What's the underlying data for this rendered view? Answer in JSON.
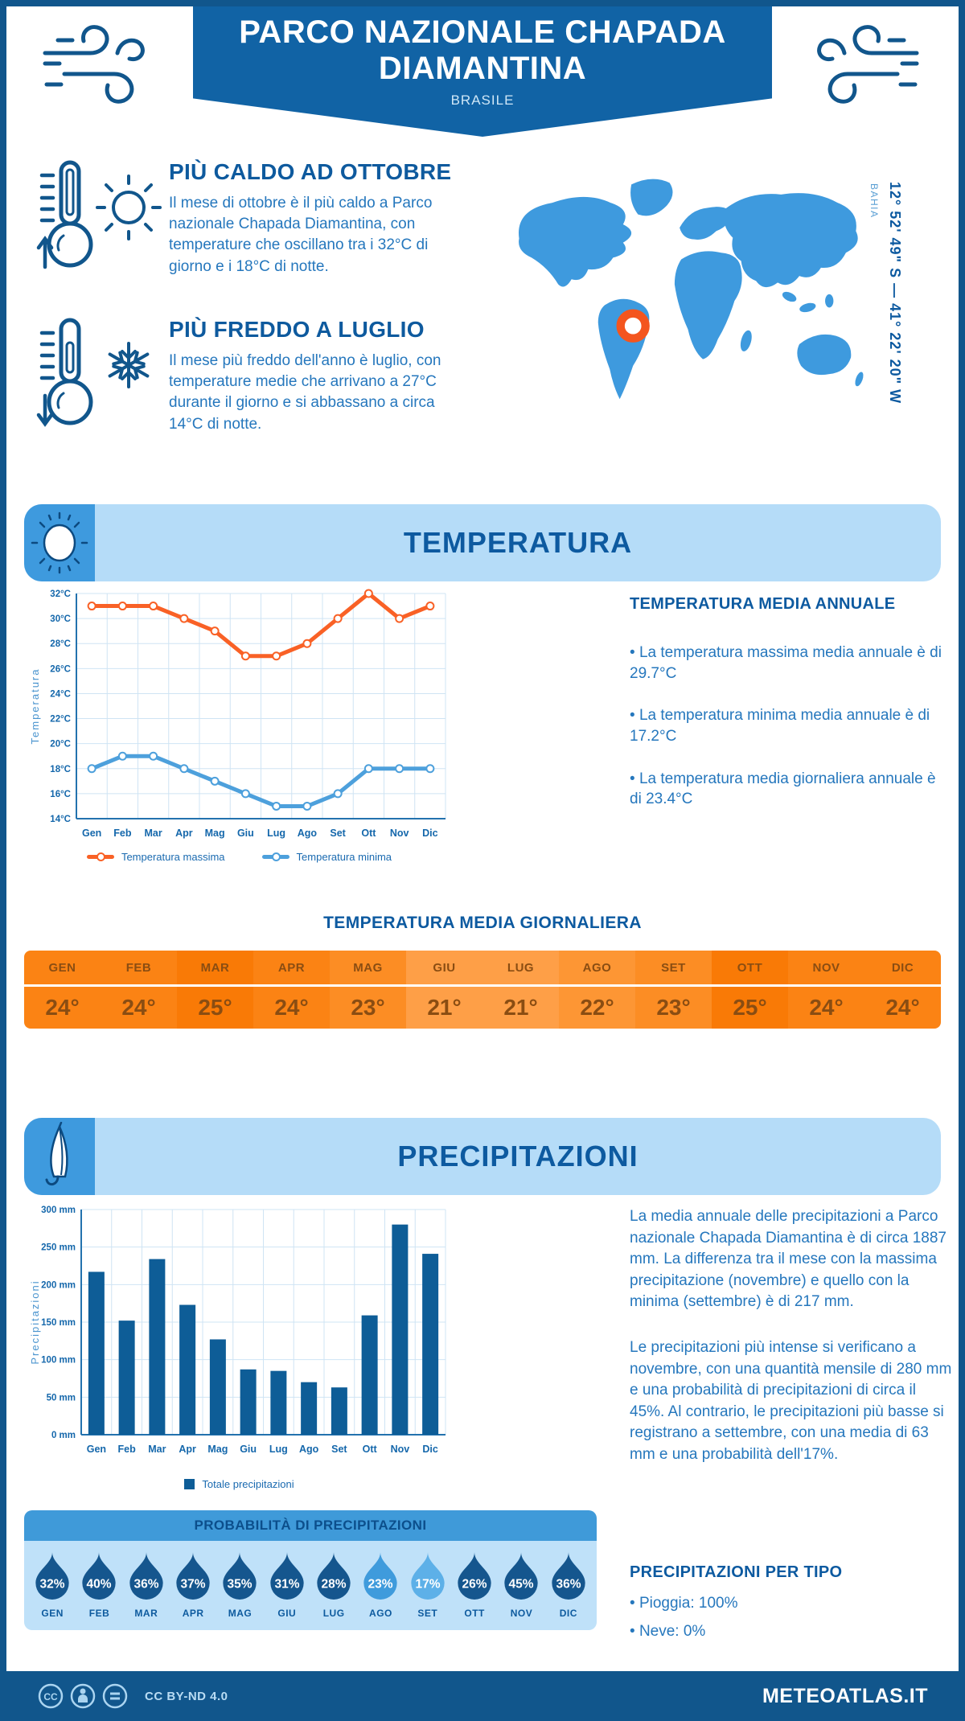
{
  "header": {
    "title": "PARCO NAZIONALE CHAPADA DIAMANTINA",
    "subtitle": "BRASILE"
  },
  "highlights": [
    {
      "title": "PIÙ CALDO AD OTTOBRE",
      "text": "Il mese di ottobre è il più caldo a Parco nazionale Chapada Diamantina, con temperature che oscillano tra i 32°C di giorno e i 18°C di notte."
    },
    {
      "title": "PIÙ FREDDO A LUGLIO",
      "text": "Il mese più freddo dell'anno è luglio, con temperature medie che arrivano a 27°C durante il giorno e si abbassano a circa 14°C di notte."
    }
  ],
  "map": {
    "region_label": "BAHIA",
    "coordinates_label": "12° 52' 49\" S — 41° 22' 20\" W",
    "land_color": "#3e9ade",
    "marker_color": "#f4551e"
  },
  "temperature": {
    "banner_title": "TEMPERATURA",
    "annual": {
      "title": "TEMPERATURA MEDIA ANNUALE",
      "bullets": [
        "La temperatura massima media annuale è di 29.7°C",
        "La temperatura minima media annuale è di 17.2°C",
        "La temperatura media giornaliera annuale è di 23.4°C"
      ]
    },
    "daily": {
      "title": "TEMPERATURA MEDIA GIORNALIERA",
      "months": [
        "GEN",
        "FEB",
        "MAR",
        "APR",
        "MAG",
        "GIU",
        "LUG",
        "AGO",
        "SET",
        "OTT",
        "NOV",
        "DIC"
      ],
      "values": [
        24,
        24,
        25,
        24,
        23,
        21,
        21,
        22,
        23,
        25,
        24,
        24
      ],
      "colors": {
        "21": "#fe9f47",
        "22": "#fd9634",
        "23": "#fc8d24",
        "24": "#fb8314",
        "25": "#f97a06"
      },
      "text_color": "#8a4d12"
    }
  },
  "precipitation": {
    "banner_title": "PRECIPITAZIONI",
    "paragraphs": [
      "La media annuale delle precipitazioni a Parco nazionale Chapada Diamantina è di circa 1887 mm. La differenza tra il mese con la massima precipitazione (novembre) e quello con la minima (settembre) è di 217 mm.",
      "Le precipitazioni più intense si verificano a novembre, con una quantità mensile di 280 mm e una probabilità di precipitazioni di circa il 45%. Al contrario, le precipitazioni più basse si registrano a settembre, con una media di 63 mm e una probabilità dell'17%."
    ],
    "probability": {
      "title": "PROBABILITÀ DI PRECIPITAZIONI",
      "months": [
        "GEN",
        "FEB",
        "MAR",
        "APR",
        "MAG",
        "GIU",
        "LUG",
        "AGO",
        "SET",
        "OTT",
        "NOV",
        "DIC"
      ],
      "values_pct": [
        32,
        40,
        36,
        37,
        35,
        31,
        28,
        23,
        17,
        26,
        45,
        36
      ],
      "drop_colors": {
        "low": "#5db0e8",
        "mid": "#3f9bdc",
        "high": "#15568e"
      }
    },
    "by_type": {
      "title": "PRECIPITAZIONI PER TIPO",
      "bullets": [
        "Pioggia: 100%",
        "Neve: 0%"
      ]
    }
  },
  "chart_data": [
    {
      "type": "line",
      "title": "Temperatura",
      "categories": [
        "Gen",
        "Feb",
        "Mar",
        "Apr",
        "Mag",
        "Giu",
        "Lug",
        "Ago",
        "Set",
        "Ott",
        "Nov",
        "Dic"
      ],
      "series": [
        {
          "name": "Temperatura massima",
          "color": "#f96126",
          "values": [
            31,
            31,
            31,
            30,
            29,
            27,
            27,
            28,
            30,
            32,
            30,
            31
          ]
        },
        {
          "name": "Temperatura minima",
          "color": "#4da0dc",
          "values": [
            18,
            19,
            19,
            18,
            17,
            16,
            15,
            15,
            16,
            18,
            18,
            18
          ]
        }
      ],
      "xlabel": "",
      "ylabel": "Temperatura",
      "ylim": [
        14,
        32
      ],
      "ystep": 2,
      "ytick_suffix": "°C",
      "grid": true,
      "legend_position": "bottom"
    },
    {
      "type": "bar",
      "title": "Precipitazioni",
      "categories": [
        "Gen",
        "Feb",
        "Mar",
        "Apr",
        "Mag",
        "Giu",
        "Lug",
        "Ago",
        "Set",
        "Ott",
        "Nov",
        "Dic"
      ],
      "series": [
        {
          "name": "Totale precipitazioni",
          "color": "#0e5d97",
          "values": [
            217,
            152,
            234,
            173,
            127,
            87,
            85,
            70,
            63,
            159,
            280,
            241
          ]
        }
      ],
      "xlabel": "",
      "ylabel": "Precipitazioni",
      "ylim": [
        0,
        300
      ],
      "ystep": 50,
      "ytick_suffix": " mm",
      "grid": true,
      "legend_position": "bottom"
    }
  ],
  "footer": {
    "license": "CC BY-ND 4.0",
    "site": "METEOATLAS.IT"
  }
}
